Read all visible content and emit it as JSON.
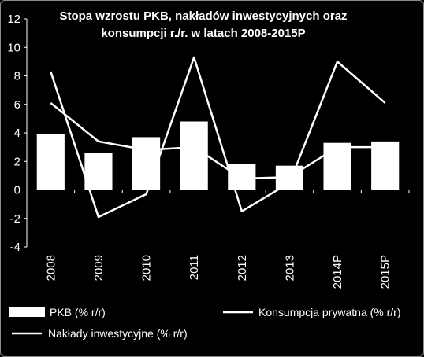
{
  "chart_data": {
    "type": "bar",
    "title_lines": [
      "Stopa wzrostu PKB, nakładów inwestycyjnych oraz",
      "konsumpcji r./r. w latach 2008-2015P"
    ],
    "categories": [
      "2008",
      "2009",
      "2010",
      "2011",
      "2012",
      "2013",
      "2014P",
      "2015P"
    ],
    "ylim": [
      -4,
      12
    ],
    "yticks": [
      "-4",
      "-2",
      "0",
      "2",
      "4",
      "6",
      "8",
      "10",
      "12"
    ],
    "grid": false,
    "legend_position": "bottom",
    "series": [
      {
        "name": "PKB (% r/r)",
        "kind": "bar",
        "values": [
          3.9,
          2.6,
          3.7,
          4.8,
          1.8,
          1.7,
          3.3,
          3.4
        ]
      },
      {
        "name": "Konsumpcja prywatna (% r/r)",
        "kind": "line",
        "values": [
          6.1,
          3.4,
          2.8,
          3.0,
          0.8,
          0.9,
          3.0,
          3.0
        ]
      },
      {
        "name": "Nakłady inwestycyjne (% r/r)",
        "kind": "line",
        "values": [
          8.3,
          -1.9,
          -0.3,
          9.3,
          -1.5,
          0.5,
          9.0,
          6.1
        ]
      }
    ],
    "colors": {
      "background": "#000000",
      "foreground": "#ffffff"
    }
  }
}
